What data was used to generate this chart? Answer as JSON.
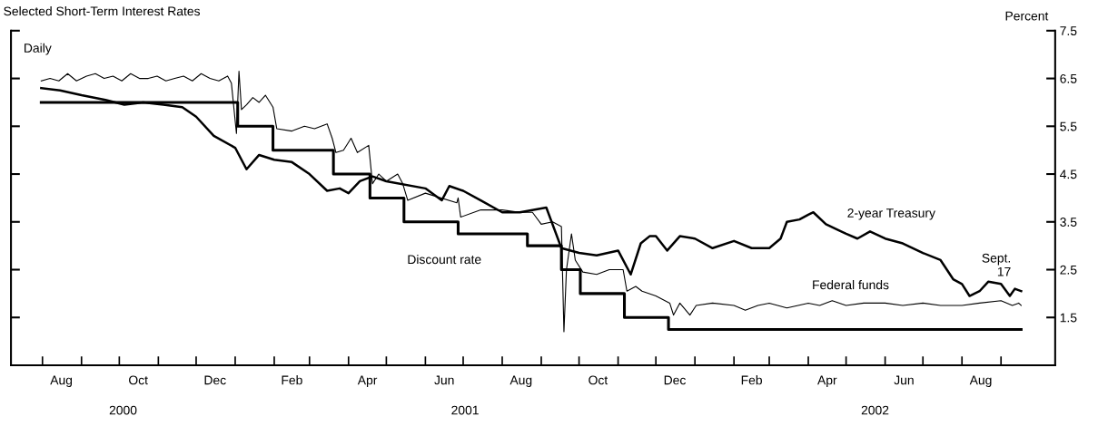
{
  "chart_data": {
    "type": "line",
    "title": "Selected Short-Term Interest Rates",
    "ylabel": "Percent",
    "annotations": [
      "Daily",
      "2000",
      "2001",
      "2002",
      {
        "text": "Sept.\n17",
        "x": "2002-09-17",
        "y": 2.05
      }
    ],
    "xlim": [
      "2000-07-07",
      "2002-10-14"
    ],
    "ylim": [
      0.5,
      7.5
    ],
    "yticks": [
      1.5,
      2.5,
      3.5,
      4.5,
      5.5,
      6.5,
      7.5
    ],
    "xticks": [
      {
        "value": "2000-08-01",
        "label": null
      },
      {
        "value": "2000-08-16",
        "label": "Aug"
      },
      {
        "value": "2000-09-01",
        "label": null
      },
      {
        "value": "2000-10-01",
        "label": null
      },
      {
        "value": "2000-10-16",
        "label": "Oct"
      },
      {
        "value": "2000-11-01",
        "label": null
      },
      {
        "value": "2000-12-01",
        "label": null
      },
      {
        "value": "2000-12-16",
        "label": "Dec"
      },
      {
        "value": "2001-01-01",
        "label": null
      },
      {
        "value": "2001-02-01",
        "label": null
      },
      {
        "value": "2001-02-15",
        "label": "Feb"
      },
      {
        "value": "2001-03-01",
        "label": null
      },
      {
        "value": "2001-04-01",
        "label": null
      },
      {
        "value": "2001-04-16",
        "label": "Apr"
      },
      {
        "value": "2001-05-01",
        "label": null
      },
      {
        "value": "2001-06-01",
        "label": null
      },
      {
        "value": "2001-06-16",
        "label": "Jun"
      },
      {
        "value": "2001-07-01",
        "label": null
      },
      {
        "value": "2001-08-01",
        "label": null
      },
      {
        "value": "2001-08-16",
        "label": "Aug"
      },
      {
        "value": "2001-09-01",
        "label": null
      },
      {
        "value": "2001-10-01",
        "label": null
      },
      {
        "value": "2001-10-16",
        "label": "Oct"
      },
      {
        "value": "2001-11-01",
        "label": null
      },
      {
        "value": "2001-12-01",
        "label": null
      },
      {
        "value": "2001-12-16",
        "label": "Dec"
      },
      {
        "value": "2002-01-01",
        "label": null
      },
      {
        "value": "2002-02-01",
        "label": null
      },
      {
        "value": "2002-02-15",
        "label": "Feb"
      },
      {
        "value": "2002-03-01",
        "label": null
      },
      {
        "value": "2002-04-01",
        "label": null
      },
      {
        "value": "2002-04-16",
        "label": "Apr"
      },
      {
        "value": "2002-05-01",
        "label": null
      },
      {
        "value": "2002-06-01",
        "label": null
      },
      {
        "value": "2002-06-16",
        "label": "Jun"
      },
      {
        "value": "2002-07-01",
        "label": null
      },
      {
        "value": "2002-08-01",
        "label": null
      },
      {
        "value": "2002-08-16",
        "label": "Aug"
      },
      {
        "value": "2002-09-01",
        "label": null
      }
    ],
    "grid": false,
    "legend": false,
    "series": [
      {
        "name": "2-year Treasury",
        "color": "#000000",
        "x": [
          "2000-07-31",
          "2000-08-15",
          "2000-09-01",
          "2000-09-20",
          "2000-10-05",
          "2000-10-20",
          "2000-11-05",
          "2000-11-20",
          "2000-12-01",
          "2000-12-15",
          "2001-01-01",
          "2001-01-10",
          "2001-01-20",
          "2001-02-01",
          "2001-02-15",
          "2001-03-01",
          "2001-03-15",
          "2001-03-25",
          "2001-04-01",
          "2001-04-10",
          "2001-04-20",
          "2001-05-01",
          "2001-06-01",
          "2001-06-14",
          "2001-06-20",
          "2001-07-01",
          "2001-07-15",
          "2001-08-01",
          "2001-08-15",
          "2001-09-05",
          "2001-09-17",
          "2001-10-01",
          "2001-10-15",
          "2001-11-01",
          "2001-11-11",
          "2001-11-19",
          "2001-11-26",
          "2001-12-01",
          "2001-12-10",
          "2001-12-20",
          "2002-01-01",
          "2002-01-15",
          "2002-02-01",
          "2002-02-15",
          "2002-03-01",
          "2002-03-10",
          "2002-03-15",
          "2002-03-25",
          "2002-04-01",
          "2002-04-05",
          "2002-04-15",
          "2002-05-01",
          "2002-05-10",
          "2002-05-20",
          "2002-06-01",
          "2002-06-15",
          "2002-07-01",
          "2002-07-15",
          "2002-07-25",
          "2002-08-01",
          "2002-08-07",
          "2002-08-15",
          "2002-08-22",
          "2002-09-01",
          "2002-09-08",
          "2002-09-12",
          "2002-09-17"
        ],
        "values": [
          6.3,
          6.25,
          6.15,
          6.05,
          5.95,
          6.0,
          5.95,
          5.9,
          5.7,
          5.3,
          5.05,
          4.6,
          4.9,
          4.8,
          4.75,
          4.5,
          4.15,
          4.2,
          4.1,
          4.35,
          4.45,
          4.35,
          4.2,
          3.95,
          4.25,
          4.15,
          3.95,
          3.7,
          3.7,
          3.8,
          2.95,
          2.85,
          2.8,
          2.9,
          2.4,
          3.05,
          3.2,
          3.2,
          2.9,
          3.2,
          3.15,
          2.95,
          3.1,
          2.95,
          2.95,
          3.15,
          3.5,
          3.55,
          3.65,
          3.7,
          3.45,
          3.25,
          3.15,
          3.3,
          3.15,
          3.05,
          2.85,
          2.7,
          2.3,
          2.2,
          1.95,
          2.05,
          2.25,
          2.2,
          1.95,
          2.1,
          2.05
        ]
      },
      {
        "name": "Federal funds",
        "color": "#000000",
        "x": [
          "2000-07-31",
          "2000-08-07",
          "2000-08-14",
          "2000-08-21",
          "2000-08-28",
          "2000-09-05",
          "2000-09-12",
          "2000-09-19",
          "2000-09-26",
          "2000-10-03",
          "2000-10-10",
          "2000-10-17",
          "2000-10-24",
          "2000-10-31",
          "2000-11-07",
          "2000-11-14",
          "2000-11-21",
          "2000-11-28",
          "2000-12-05",
          "2000-12-12",
          "2000-12-19",
          "2000-12-26",
          "2000-12-29",
          "2001-01-02",
          "2001-01-04",
          "2001-01-06",
          "2001-01-10",
          "2001-01-15",
          "2001-01-20",
          "2001-01-25",
          "2001-01-31",
          "2001-02-03",
          "2001-02-15",
          "2001-02-25",
          "2001-03-05",
          "2001-03-15",
          "2001-03-19",
          "2001-03-22",
          "2001-03-28",
          "2001-04-03",
          "2001-04-08",
          "2001-04-17",
          "2001-04-20",
          "2001-04-25",
          "2001-05-01",
          "2001-05-10",
          "2001-05-14",
          "2001-05-18",
          "2001-06-01",
          "2001-06-26",
          "2001-06-27",
          "2001-06-29",
          "2001-07-15",
          "2001-08-01",
          "2001-08-15",
          "2001-08-25",
          "2001-09-01",
          "2001-09-10",
          "2001-09-17",
          "2001-09-19",
          "2001-09-21",
          "2001-09-25",
          "2001-09-28",
          "2001-10-04",
          "2001-10-15",
          "2001-10-25",
          "2001-11-05",
          "2001-11-08",
          "2001-11-15",
          "2001-11-20",
          "2001-12-01",
          "2001-12-12",
          "2001-12-15",
          "2001-12-20",
          "2001-12-28",
          "2002-01-02",
          "2002-01-15",
          "2002-02-01",
          "2002-02-10",
          "2002-02-20",
          "2002-03-01",
          "2002-03-15",
          "2002-04-01",
          "2002-04-10",
          "2002-04-20",
          "2002-05-01",
          "2002-05-15",
          "2002-06-01",
          "2002-06-15",
          "2002-07-01",
          "2002-07-15",
          "2002-08-01",
          "2002-08-15",
          "2002-09-01",
          "2002-09-10",
          "2002-09-15",
          "2002-09-17"
        ],
        "values": [
          6.45,
          6.5,
          6.45,
          6.6,
          6.45,
          6.55,
          6.6,
          6.5,
          6.55,
          6.45,
          6.6,
          6.5,
          6.5,
          6.55,
          6.45,
          6.5,
          6.55,
          6.45,
          6.6,
          6.5,
          6.45,
          6.55,
          6.4,
          5.35,
          6.65,
          5.85,
          5.95,
          6.1,
          6.0,
          6.15,
          5.9,
          5.45,
          5.4,
          5.5,
          5.45,
          5.55,
          5.25,
          4.95,
          5.0,
          5.25,
          4.95,
          5.1,
          4.3,
          4.5,
          4.35,
          4.5,
          4.3,
          3.95,
          4.1,
          3.9,
          4.0,
          3.6,
          3.75,
          3.75,
          3.7,
          3.7,
          3.45,
          3.5,
          3.4,
          1.2,
          2.5,
          3.25,
          2.7,
          2.45,
          2.4,
          2.5,
          2.5,
          2.05,
          2.15,
          2.05,
          1.95,
          1.8,
          1.55,
          1.8,
          1.55,
          1.75,
          1.8,
          1.75,
          1.65,
          1.75,
          1.8,
          1.7,
          1.8,
          1.75,
          1.85,
          1.75,
          1.8,
          1.8,
          1.75,
          1.8,
          1.75,
          1.75,
          1.8,
          1.85,
          1.75,
          1.8,
          1.75
        ]
      },
      {
        "name": "Discount rate",
        "type": "step",
        "color": "#000000",
        "x": [
          "2000-07-31",
          "2001-01-03",
          "2001-01-31",
          "2001-03-20",
          "2001-04-18",
          "2001-05-15",
          "2001-06-27",
          "2001-08-21",
          "2001-09-17",
          "2001-10-02",
          "2001-11-06",
          "2001-12-11",
          "2002-09-17"
        ],
        "values": [
          6.0,
          5.5,
          5.0,
          4.5,
          4.0,
          3.5,
          3.25,
          3.0,
          2.5,
          2.0,
          1.5,
          1.25,
          1.25
        ]
      }
    ]
  }
}
